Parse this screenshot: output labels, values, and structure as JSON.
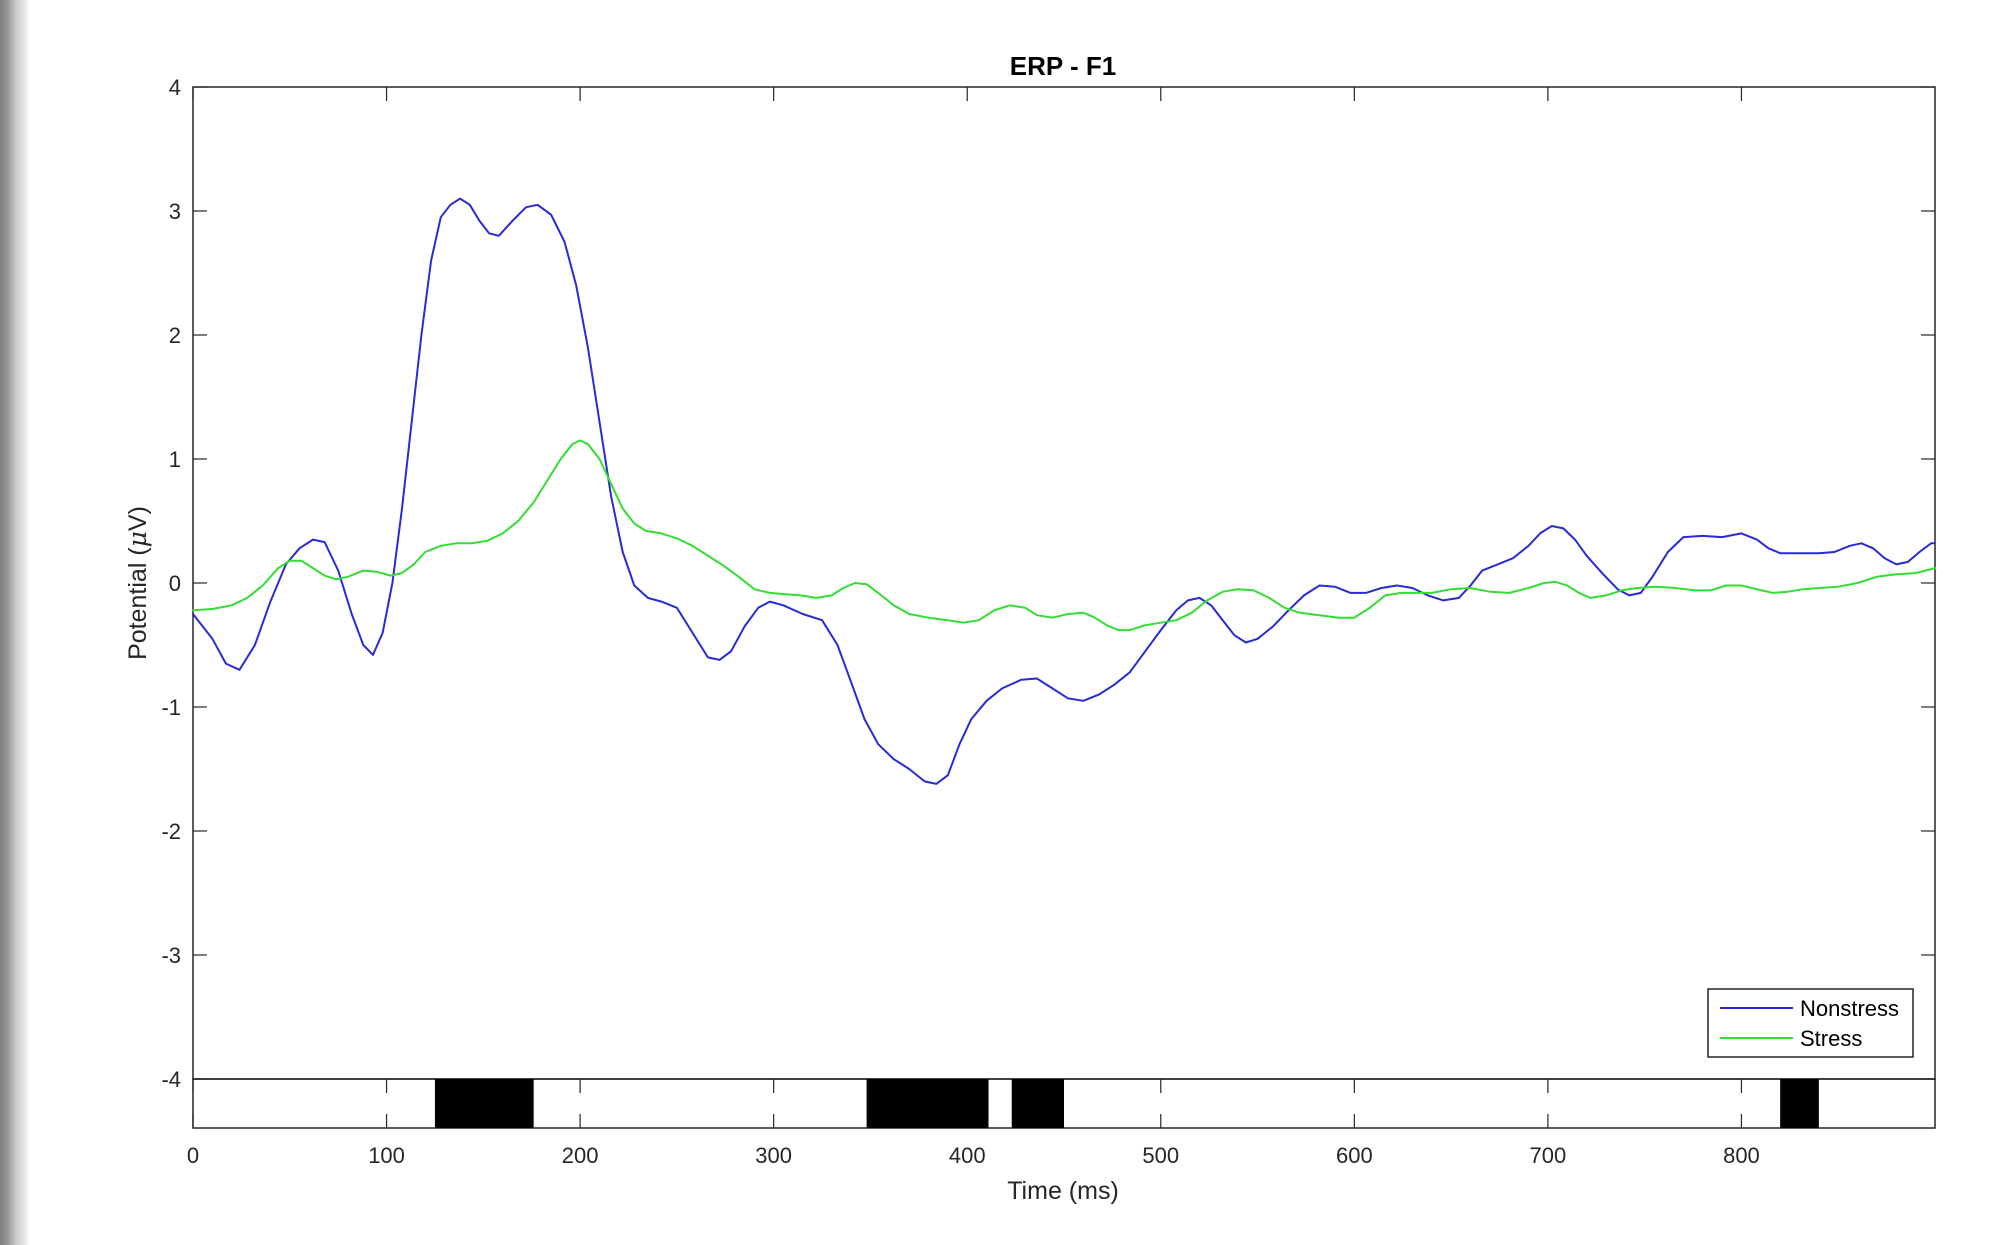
{
  "chart_data": {
    "type": "line",
    "title": "ERP - F1",
    "xlabel": "Time (ms)",
    "ylabel_main": "Potential (",
    "ylabel_mu": "μ",
    "ylabel_tail": "V)",
    "xlim": [
      0,
      900
    ],
    "ylim": [
      -4,
      4
    ],
    "x_ticks": [
      0,
      100,
      200,
      300,
      400,
      500,
      600,
      700,
      800
    ],
    "x_tick_labels": [
      "0",
      "100",
      "200",
      "300",
      "400",
      "500",
      "600",
      "700",
      "800"
    ],
    "y_ticks": [
      4,
      3,
      2,
      1,
      0,
      -1,
      -2,
      -3,
      -4
    ],
    "y_tick_labels": [
      "4",
      "3",
      "2",
      "1",
      "0",
      "-1",
      "-2",
      "-3",
      "-4"
    ],
    "grid": false,
    "legend_position": "bottom-right",
    "series": [
      {
        "name": "Nonstress",
        "color": "#2a2ad6",
        "points": [
          [
            0,
            -0.25
          ],
          [
            10,
            -0.45
          ],
          [
            17,
            -0.65
          ],
          [
            24,
            -0.7
          ],
          [
            32,
            -0.5
          ],
          [
            40,
            -0.15
          ],
          [
            48,
            0.15
          ],
          [
            55,
            0.28
          ],
          [
            62,
            0.35
          ],
          [
            68,
            0.33
          ],
          [
            75,
            0.1
          ],
          [
            82,
            -0.25
          ],
          [
            88,
            -0.5
          ],
          [
            93,
            -0.58
          ],
          [
            98,
            -0.4
          ],
          [
            103,
            0
          ],
          [
            108,
            0.6
          ],
          [
            113,
            1.3
          ],
          [
            118,
            2.0
          ],
          [
            123,
            2.6
          ],
          [
            128,
            2.95
          ],
          [
            133,
            3.05
          ],
          [
            138,
            3.1
          ],
          [
            143,
            3.05
          ],
          [
            148,
            2.92
          ],
          [
            153,
            2.82
          ],
          [
            158,
            2.8
          ],
          [
            165,
            2.92
          ],
          [
            172,
            3.03
          ],
          [
            178,
            3.05
          ],
          [
            185,
            2.97
          ],
          [
            192,
            2.75
          ],
          [
            198,
            2.4
          ],
          [
            204,
            1.9
          ],
          [
            210,
            1.3
          ],
          [
            216,
            0.7
          ],
          [
            222,
            0.25
          ],
          [
            228,
            -0.02
          ],
          [
            235,
            -0.12
          ],
          [
            242,
            -0.15
          ],
          [
            250,
            -0.2
          ],
          [
            258,
            -0.4
          ],
          [
            266,
            -0.6
          ],
          [
            272,
            -0.62
          ],
          [
            278,
            -0.55
          ],
          [
            285,
            -0.35
          ],
          [
            292,
            -0.2
          ],
          [
            298,
            -0.15
          ],
          [
            305,
            -0.18
          ],
          [
            315,
            -0.25
          ],
          [
            325,
            -0.3
          ],
          [
            333,
            -0.5
          ],
          [
            340,
            -0.8
          ],
          [
            347,
            -1.1
          ],
          [
            354,
            -1.3
          ],
          [
            362,
            -1.42
          ],
          [
            370,
            -1.5
          ],
          [
            378,
            -1.6
          ],
          [
            384,
            -1.62
          ],
          [
            390,
            -1.55
          ],
          [
            396,
            -1.3
          ],
          [
            402,
            -1.1
          ],
          [
            410,
            -0.95
          ],
          [
            418,
            -0.85
          ],
          [
            428,
            -0.78
          ],
          [
            436,
            -0.77
          ],
          [
            444,
            -0.85
          ],
          [
            452,
            -0.93
          ],
          [
            460,
            -0.95
          ],
          [
            468,
            -0.9
          ],
          [
            476,
            -0.82
          ],
          [
            484,
            -0.72
          ],
          [
            492,
            -0.55
          ],
          [
            500,
            -0.38
          ],
          [
            508,
            -0.22
          ],
          [
            514,
            -0.14
          ],
          [
            520,
            -0.12
          ],
          [
            526,
            -0.18
          ],
          [
            532,
            -0.3
          ],
          [
            538,
            -0.42
          ],
          [
            544,
            -0.48
          ],
          [
            550,
            -0.45
          ],
          [
            558,
            -0.35
          ],
          [
            566,
            -0.22
          ],
          [
            574,
            -0.1
          ],
          [
            582,
            -0.02
          ],
          [
            590,
            -0.03
          ],
          [
            598,
            -0.08
          ],
          [
            606,
            -0.08
          ],
          [
            614,
            -0.04
          ],
          [
            622,
            -0.02
          ],
          [
            630,
            -0.04
          ],
          [
            638,
            -0.1
          ],
          [
            646,
            -0.14
          ],
          [
            654,
            -0.12
          ],
          [
            660,
            -0.02
          ],
          [
            666,
            0.1
          ],
          [
            674,
            0.15
          ],
          [
            682,
            0.2
          ],
          [
            690,
            0.3
          ],
          [
            696,
            0.4
          ],
          [
            702,
            0.46
          ],
          [
            708,
            0.44
          ],
          [
            714,
            0.35
          ],
          [
            720,
            0.22
          ],
          [
            728,
            0.08
          ],
          [
            736,
            -0.05
          ],
          [
            742,
            -0.1
          ],
          [
            748,
            -0.08
          ],
          [
            754,
            0.05
          ],
          [
            762,
            0.25
          ],
          [
            770,
            0.37
          ],
          [
            780,
            0.38
          ],
          [
            790,
            0.37
          ],
          [
            800,
            0.4
          ],
          [
            808,
            0.35
          ],
          [
            814,
            0.28
          ],
          [
            820,
            0.24
          ],
          [
            830,
            0.24
          ],
          [
            840,
            0.24
          ],
          [
            848,
            0.25
          ],
          [
            856,
            0.3
          ],
          [
            862,
            0.32
          ],
          [
            868,
            0.28
          ],
          [
            874,
            0.2
          ],
          [
            880,
            0.15
          ],
          [
            886,
            0.17
          ],
          [
            892,
            0.25
          ],
          [
            898,
            0.32
          ],
          [
            900,
            0.32
          ]
        ]
      },
      {
        "name": "Stress",
        "color": "#33dd33",
        "points": [
          [
            0,
            -0.22
          ],
          [
            10,
            -0.21
          ],
          [
            20,
            -0.18
          ],
          [
            28,
            -0.12
          ],
          [
            36,
            -0.02
          ],
          [
            44,
            0.12
          ],
          [
            50,
            0.18
          ],
          [
            56,
            0.18
          ],
          [
            62,
            0.12
          ],
          [
            68,
            0.06
          ],
          [
            74,
            0.03
          ],
          [
            80,
            0.05
          ],
          [
            88,
            0.1
          ],
          [
            95,
            0.09
          ],
          [
            102,
            0.06
          ],
          [
            108,
            0.08
          ],
          [
            114,
            0.15
          ],
          [
            120,
            0.25
          ],
          [
            128,
            0.3
          ],
          [
            136,
            0.32
          ],
          [
            144,
            0.32
          ],
          [
            152,
            0.34
          ],
          [
            160,
            0.4
          ],
          [
            168,
            0.5
          ],
          [
            176,
            0.65
          ],
          [
            184,
            0.85
          ],
          [
            190,
            1.0
          ],
          [
            196,
            1.12
          ],
          [
            200,
            1.15
          ],
          [
            204,
            1.12
          ],
          [
            210,
            1.0
          ],
          [
            216,
            0.8
          ],
          [
            222,
            0.6
          ],
          [
            228,
            0.48
          ],
          [
            234,
            0.42
          ],
          [
            242,
            0.4
          ],
          [
            250,
            0.36
          ],
          [
            258,
            0.3
          ],
          [
            266,
            0.22
          ],
          [
            274,
            0.14
          ],
          [
            282,
            0.05
          ],
          [
            290,
            -0.05
          ],
          [
            298,
            -0.08
          ],
          [
            306,
            -0.09
          ],
          [
            314,
            -0.1
          ],
          [
            322,
            -0.12
          ],
          [
            330,
            -0.1
          ],
          [
            336,
            -0.04
          ],
          [
            342,
            0.0
          ],
          [
            348,
            -0.01
          ],
          [
            354,
            -0.08
          ],
          [
            362,
            -0.18
          ],
          [
            370,
            -0.25
          ],
          [
            380,
            -0.28
          ],
          [
            390,
            -0.3
          ],
          [
            398,
            -0.32
          ],
          [
            406,
            -0.3
          ],
          [
            414,
            -0.22
          ],
          [
            422,
            -0.18
          ],
          [
            430,
            -0.2
          ],
          [
            436,
            -0.26
          ],
          [
            444,
            -0.28
          ],
          [
            452,
            -0.25
          ],
          [
            460,
            -0.24
          ],
          [
            466,
            -0.28
          ],
          [
            472,
            -0.34
          ],
          [
            478,
            -0.38
          ],
          [
            484,
            -0.38
          ],
          [
            492,
            -0.34
          ],
          [
            500,
            -0.32
          ],
          [
            508,
            -0.3
          ],
          [
            516,
            -0.24
          ],
          [
            524,
            -0.14
          ],
          [
            532,
            -0.07
          ],
          [
            540,
            -0.05
          ],
          [
            548,
            -0.06
          ],
          [
            556,
            -0.12
          ],
          [
            564,
            -0.2
          ],
          [
            572,
            -0.24
          ],
          [
            582,
            -0.26
          ],
          [
            592,
            -0.28
          ],
          [
            600,
            -0.28
          ],
          [
            608,
            -0.2
          ],
          [
            616,
            -0.1
          ],
          [
            624,
            -0.08
          ],
          [
            632,
            -0.08
          ],
          [
            640,
            -0.08
          ],
          [
            650,
            -0.05
          ],
          [
            660,
            -0.04
          ],
          [
            670,
            -0.07
          ],
          [
            680,
            -0.08
          ],
          [
            690,
            -0.04
          ],
          [
            698,
            0.0
          ],
          [
            704,
            0.01
          ],
          [
            710,
            -0.02
          ],
          [
            716,
            -0.08
          ],
          [
            722,
            -0.12
          ],
          [
            730,
            -0.1
          ],
          [
            738,
            -0.06
          ],
          [
            746,
            -0.04
          ],
          [
            756,
            -0.03
          ],
          [
            766,
            -0.04
          ],
          [
            776,
            -0.06
          ],
          [
            784,
            -0.06
          ],
          [
            792,
            -0.02
          ],
          [
            800,
            -0.02
          ],
          [
            808,
            -0.05
          ],
          [
            816,
            -0.08
          ],
          [
            824,
            -0.07
          ],
          [
            832,
            -0.05
          ],
          [
            840,
            -0.04
          ],
          [
            850,
            -0.03
          ],
          [
            860,
            0.0
          ],
          [
            870,
            0.05
          ],
          [
            880,
            0.07
          ],
          [
            890,
            0.08
          ],
          [
            900,
            0.12
          ]
        ]
      }
    ],
    "significance_intervals_ms": [
      [
        125,
        176
      ],
      [
        348,
        411
      ],
      [
        423,
        450
      ],
      [
        820,
        840
      ]
    ],
    "legend": [
      {
        "label": "Nonstress",
        "color": "#2a2ad6"
      },
      {
        "label": "Stress",
        "color": "#33dd33"
      }
    ]
  }
}
